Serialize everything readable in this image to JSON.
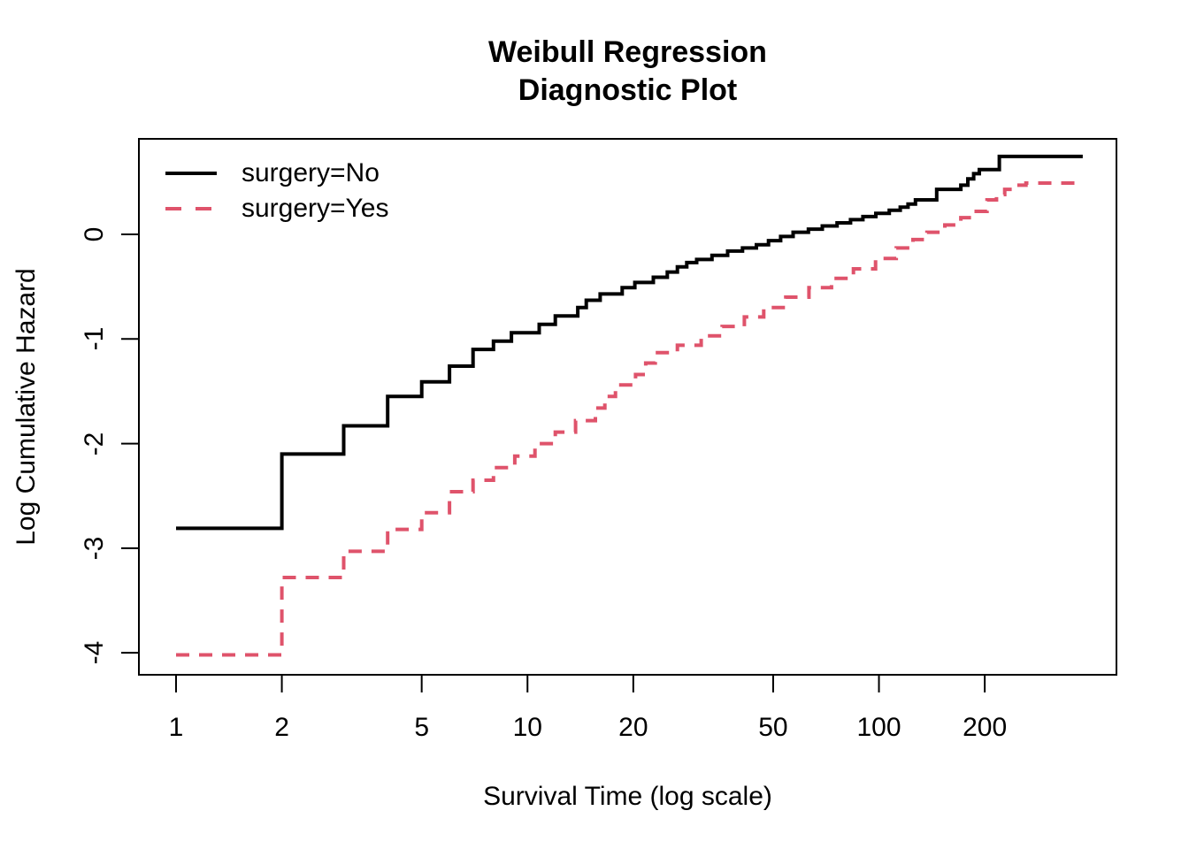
{
  "figure": {
    "background": "#ffffff",
    "foreground": "#000000"
  },
  "chart_data": {
    "type": "line",
    "subtype": "step-function (Kaplan-Meier log cumulative hazard, Weibull diagnostic)",
    "title": "Weibull Regression Diagnostic Plot",
    "title_lines": [
      "Weibull Regression",
      "Diagnostic Plot"
    ],
    "xlabel": "Survival Time (log scale)",
    "ylabel": "Log Cumulative Hazard",
    "x_scale": "log10",
    "xlim": [
      0.784,
      474
    ],
    "ylim": [
      -4.21,
      0.913
    ],
    "x_ticks": [
      1,
      2,
      5,
      10,
      20,
      50,
      100,
      200
    ],
    "x_tick_labels": [
      "1",
      "2",
      "5",
      "10",
      "20",
      "50",
      "100",
      "200"
    ],
    "y_ticks": [
      0,
      -1,
      -2,
      -3,
      -4
    ],
    "y_tick_labels": [
      "0",
      "-1",
      "-2",
      "-3",
      "-4"
    ],
    "grid": "off",
    "legend_position": "top-left-inside",
    "series": [
      {
        "name": "surgery=No",
        "color": "#000000",
        "linetype": "solid",
        "line_width": 4,
        "step": true,
        "end_t": 380,
        "points": [
          [
            1,
            -2.81
          ],
          [
            2,
            -2.1
          ],
          [
            3,
            -1.83
          ],
          [
            4,
            -1.55
          ],
          [
            5,
            -1.41
          ],
          [
            6,
            -1.26
          ],
          [
            7,
            -1.1
          ],
          [
            8,
            -1.02
          ],
          [
            9,
            -0.94
          ],
          [
            10.8,
            -0.86
          ],
          [
            12,
            -0.78
          ],
          [
            13.9,
            -0.7
          ],
          [
            14.7,
            -0.63
          ],
          [
            16.1,
            -0.57
          ],
          [
            18.6,
            -0.51
          ],
          [
            20.2,
            -0.46
          ],
          [
            22.8,
            -0.41
          ],
          [
            25,
            -0.36
          ],
          [
            26.7,
            -0.31
          ],
          [
            28.4,
            -0.27
          ],
          [
            30.3,
            -0.24
          ],
          [
            33.5,
            -0.2
          ],
          [
            37.1,
            -0.16
          ],
          [
            40.9,
            -0.13
          ],
          [
            44.8,
            -0.1
          ],
          [
            48.5,
            -0.06
          ],
          [
            52.5,
            -0.02
          ],
          [
            57,
            0.02
          ],
          [
            63,
            0.05
          ],
          [
            69,
            0.08
          ],
          [
            76,
            0.11
          ],
          [
            83,
            0.14
          ],
          [
            90,
            0.17
          ],
          [
            98,
            0.2
          ],
          [
            107,
            0.23
          ],
          [
            115,
            0.26
          ],
          [
            121,
            0.29
          ],
          [
            127,
            0.33
          ],
          [
            146,
            0.43
          ],
          [
            171,
            0.47
          ],
          [
            179,
            0.53
          ],
          [
            186,
            0.58
          ],
          [
            193,
            0.62
          ],
          [
            220,
            0.745
          ]
        ]
      },
      {
        "name": "surgery=Yes",
        "color": "#DF536B",
        "linetype": "dashed",
        "dash_pattern": [
          15,
          11
        ],
        "line_width": 4,
        "step": true,
        "end_t": 368,
        "points": [
          [
            1,
            -4.02
          ],
          [
            2,
            -3.28
          ],
          [
            3,
            -3.03
          ],
          [
            4,
            -2.82
          ],
          [
            5,
            -2.66
          ],
          [
            6,
            -2.46
          ],
          [
            7,
            -2.35
          ],
          [
            8,
            -2.23
          ],
          [
            9.2,
            -2.12
          ],
          [
            10.5,
            -2.0
          ],
          [
            12,
            -1.89
          ],
          [
            13.7,
            -1.78
          ],
          [
            15.6,
            -1.66
          ],
          [
            16.6,
            -1.55
          ],
          [
            17.8,
            -1.44
          ],
          [
            20.3,
            -1.34
          ],
          [
            21.7,
            -1.23
          ],
          [
            23.1,
            -1.13
          ],
          [
            26.7,
            -1.06
          ],
          [
            31.2,
            -0.97
          ],
          [
            35.8,
            -0.88
          ],
          [
            41.4,
            -0.79
          ],
          [
            47,
            -0.7
          ],
          [
            54.3,
            -0.6
          ],
          [
            63.2,
            -0.51
          ],
          [
            73.3,
            -0.42
          ],
          [
            84.6,
            -0.33
          ],
          [
            97.8,
            -0.23
          ],
          [
            112,
            -0.13
          ],
          [
            125,
            -0.05
          ],
          [
            137,
            0.02
          ],
          [
            154,
            0.09
          ],
          [
            171,
            0.16
          ],
          [
            186,
            0.22
          ],
          [
            203,
            0.33
          ],
          [
            216,
            0.38
          ],
          [
            228,
            0.43
          ],
          [
            245,
            0.47
          ],
          [
            262,
            0.49
          ]
        ]
      }
    ]
  }
}
